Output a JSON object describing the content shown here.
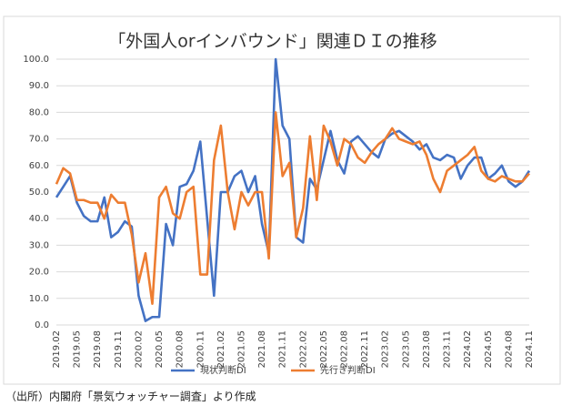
{
  "chart_data": {
    "type": "line",
    "title": "「外国人orインバウンド」関連ＤＩの推移",
    "note": "（出所）内閣府「景気ウォッチャー調査」より作成",
    "categories": [
      "2019.02",
      null,
      null,
      "2019.05",
      null,
      null,
      "2019.08",
      null,
      null,
      "2019.11",
      null,
      null,
      "2020.02",
      null,
      null,
      "2020.05",
      null,
      null,
      "2020.08",
      null,
      null,
      "2020.11",
      null,
      null,
      "2021.02",
      null,
      null,
      "2021.05",
      null,
      null,
      "2021.08",
      null,
      null,
      "2021.11",
      null,
      null,
      "2022.02",
      null,
      null,
      "2022.05",
      null,
      null,
      "2022.08",
      null,
      null,
      "2022.11",
      null,
      null,
      "2023.02",
      null,
      null,
      "2023.05",
      null,
      null,
      "2023.08",
      null,
      null,
      "2023.11",
      null,
      null,
      "2024.02",
      null,
      null,
      "2024.05",
      null,
      null,
      "2024.08",
      null,
      null,
      "2024.11"
    ],
    "series": [
      {
        "name": "現状判断DI",
        "color": "#4472c4",
        "values": [
          48,
          52,
          56,
          46,
          41,
          39,
          39,
          48,
          33,
          35,
          39,
          37,
          11,
          1.5,
          3,
          3,
          38,
          30,
          52,
          53,
          58,
          69,
          40,
          11,
          50,
          50,
          56,
          58,
          50,
          56,
          38,
          27,
          100,
          75,
          70,
          33,
          31,
          55,
          51,
          62,
          73,
          62,
          57,
          69,
          71,
          68,
          65,
          63,
          70,
          72,
          73,
          71,
          69,
          66,
          68,
          63,
          62,
          64,
          63,
          55,
          60,
          63,
          63,
          55,
          57,
          60,
          54,
          52,
          54,
          58
        ]
      },
      {
        "name": "先行き判断DI",
        "color": "#ed7d31",
        "values": [
          53,
          59,
          57,
          47,
          47,
          46,
          46,
          40,
          49,
          46,
          46,
          34,
          16,
          27,
          8,
          48,
          52,
          42,
          40,
          50,
          52,
          19,
          19,
          62,
          75,
          50,
          36,
          50,
          45,
          50,
          50,
          25,
          80,
          56,
          61,
          33,
          44,
          71,
          47,
          75,
          69,
          60,
          70,
          68,
          63,
          61,
          65,
          68,
          70,
          74,
          70,
          69,
          68,
          69,
          64,
          55,
          50,
          58,
          60,
          62,
          64,
          67,
          58,
          55,
          54,
          56,
          55,
          54,
          54,
          57
        ]
      }
    ],
    "ylim": [
      0,
      100
    ],
    "yticks": [
      {
        "value": 0,
        "label": "0.0"
      },
      {
        "value": 10,
        "label": "10.0"
      },
      {
        "value": 20,
        "label": "20.0"
      },
      {
        "value": 30,
        "label": "30.0"
      },
      {
        "value": 40,
        "label": "40.0"
      },
      {
        "value": 50,
        "label": "50.0"
      },
      {
        "value": 60,
        "label": "60.0"
      },
      {
        "value": 70,
        "label": "70.0"
      },
      {
        "value": 80,
        "label": "80.0"
      },
      {
        "value": 90,
        "label": "90.0"
      },
      {
        "value": 100,
        "label": "100.0"
      }
    ],
    "grid": true,
    "legend": "bottom"
  }
}
